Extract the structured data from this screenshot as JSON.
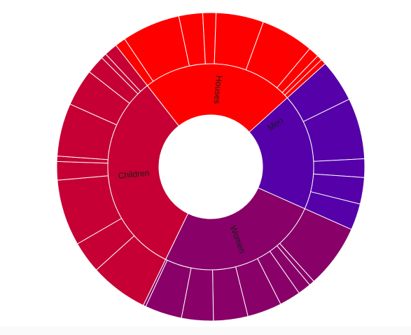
{
  "chart_data": {
    "type": "sunburst",
    "units": "degrees",
    "categories": [
      {
        "name": "Men",
        "color": "#5500a8",
        "children": [
          14,
          7,
          25,
          18,
          23,
          7,
          10,
          10
        ]
      },
      {
        "name": "Women",
        "color": "#880068",
        "children": [
          24,
          2,
          5,
          8,
          13,
          13,
          12,
          14,
          1
        ]
      },
      {
        "name": "Children",
        "color": "#c60034",
        "children": [
          22,
          12,
          25,
          7,
          2,
          20,
          14,
          7,
          2,
          5
        ]
      },
      {
        "name": "Houses",
        "color": "#ff0000",
        "children": [
          4,
          22,
          9,
          5,
          18,
          20,
          4,
          2,
          2
        ]
      }
    ]
  }
}
